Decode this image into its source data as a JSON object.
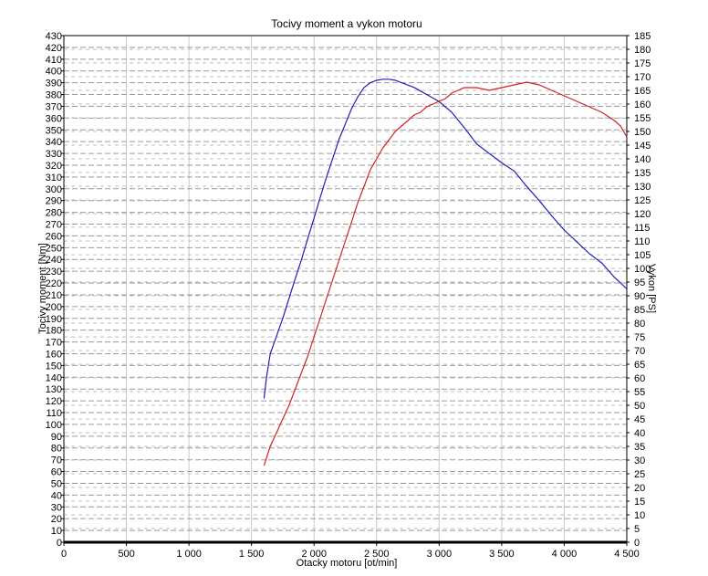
{
  "chart_data": {
    "type": "line",
    "title": "Tocivy moment a vykon motoru",
    "xlabel": "Otacky motoru [ot/min]",
    "ylabel_left": "Tocivy moment [Nm]",
    "ylabel_right": "Vykon [PS]",
    "xlim": [
      0,
      4500
    ],
    "ylim_left": [
      0,
      430
    ],
    "ylim_right": [
      0,
      185
    ],
    "x_ticks": [
      0,
      500,
      1000,
      1500,
      2000,
      2500,
      3000,
      3500,
      4000,
      4500
    ],
    "x_tick_labels": [
      "0",
      "500",
      "1 000",
      "1 500",
      "2 000",
      "2 500",
      "3 000",
      "3 500",
      "4 000",
      "4 500"
    ],
    "y_left_ticks": [
      0,
      10,
      20,
      30,
      40,
      50,
      60,
      70,
      80,
      90,
      100,
      110,
      120,
      130,
      140,
      150,
      160,
      170,
      180,
      190,
      200,
      210,
      220,
      230,
      240,
      250,
      260,
      270,
      280,
      290,
      300,
      310,
      320,
      330,
      340,
      350,
      360,
      370,
      380,
      390,
      400,
      410,
      420,
      430
    ],
    "y_right_ticks": [
      0,
      5,
      10,
      15,
      20,
      25,
      30,
      35,
      40,
      45,
      50,
      55,
      60,
      65,
      70,
      75,
      80,
      85,
      90,
      95,
      100,
      105,
      110,
      115,
      120,
      125,
      130,
      135,
      140,
      145,
      150,
      155,
      160,
      165,
      170,
      175,
      180,
      185
    ],
    "grid": true,
    "legend": "none",
    "series": [
      {
        "axis": "left",
        "color": "#1f1fb4",
        "x": [
          1600,
          1620,
          1650,
          1700,
          1750,
          1800,
          1850,
          1900,
          1950,
          2000,
          2050,
          2100,
          2150,
          2200,
          2250,
          2300,
          2350,
          2400,
          2450,
          2500,
          2550,
          2600,
          2650,
          2700,
          2750,
          2800,
          2850,
          2900,
          2950,
          3000,
          3100,
          3200,
          3300,
          3400,
          3500,
          3600,
          3700,
          3800,
          3900,
          4000,
          4100,
          4200,
          4300,
          4400,
          4500
        ],
        "values": [
          122,
          140,
          160,
          175,
          190,
          207,
          224,
          240,
          258,
          275,
          293,
          310,
          326,
          342,
          355,
          368,
          378,
          386,
          390,
          392,
          393,
          393,
          392,
          390,
          388,
          386,
          383,
          380,
          377,
          374,
          365,
          352,
          338,
          330,
          322,
          315,
          302,
          290,
          277,
          265,
          255,
          245,
          237,
          225,
          215
        ]
      },
      {
        "axis": "right",
        "color": "#d42020",
        "x": [
          1600,
          1650,
          1700,
          1750,
          1800,
          1850,
          1900,
          1950,
          2000,
          2050,
          2100,
          2150,
          2200,
          2250,
          2300,
          2350,
          2400,
          2450,
          2500,
          2550,
          2600,
          2650,
          2700,
          2750,
          2800,
          2850,
          2900,
          2950,
          3000,
          3050,
          3100,
          3150,
          3200,
          3300,
          3400,
          3500,
          3600,
          3700,
          3800,
          3900,
          4000,
          4100,
          4200,
          4300,
          4400,
          4450,
          4500
        ],
        "values": [
          28,
          35,
          40,
          45,
          50,
          56,
          62,
          68,
          75,
          82,
          89,
          96,
          103,
          110,
          117,
          124,
          130,
          136,
          140,
          144,
          147,
          150,
          152,
          154,
          156,
          157,
          159,
          160,
          161,
          162,
          164,
          165,
          166,
          166,
          165,
          166,
          167,
          168,
          167,
          165,
          163,
          161,
          159,
          157,
          154,
          152,
          148
        ]
      }
    ]
  }
}
